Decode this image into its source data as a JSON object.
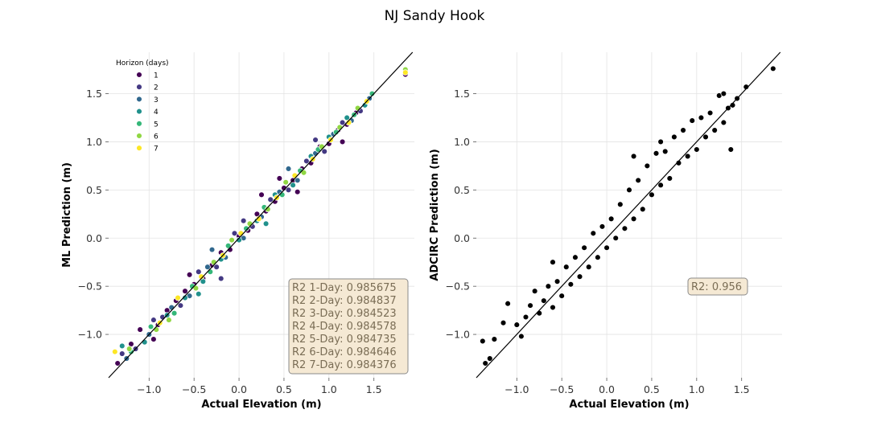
{
  "figure": {
    "title": "NJ Sandy Hook"
  },
  "chart_data": [
    {
      "type": "scatter",
      "xlabel": "Actual Elevation (m)",
      "ylabel": "ML Prediction (m)",
      "xlim": [
        -1.45,
        1.95
      ],
      "ylim": [
        -1.45,
        1.93
      ],
      "xticks": [
        -1.0,
        -0.5,
        0.0,
        0.5,
        1.0,
        1.5
      ],
      "xtick_labels": [
        "−1.0",
        "−0.5",
        "0.0",
        "0.5",
        "1.0",
        "1.5"
      ],
      "yticks": [
        -1.0,
        -0.5,
        0.0,
        0.5,
        1.0,
        1.5
      ],
      "ytick_labels": [
        "−1.0",
        "−0.5",
        "0.0",
        "0.5",
        "1.0",
        "1.5"
      ],
      "grid": true,
      "identity_line": true,
      "legend": {
        "title": "Horizon (days)",
        "placement": "top-left",
        "items": [
          {
            "label": "1",
            "color": "#440154"
          },
          {
            "label": "2",
            "color": "#443983"
          },
          {
            "label": "3",
            "color": "#31688e"
          },
          {
            "label": "4",
            "color": "#21918c"
          },
          {
            "label": "5",
            "color": "#35b779"
          },
          {
            "label": "6",
            "color": "#90d743"
          },
          {
            "label": "7",
            "color": "#fde725"
          }
        ]
      },
      "annotation": {
        "placement": "bottom-right",
        "lines": [
          "R2 1-Day: 0.985675",
          "R2 2-Day: 0.984837",
          "R2 3-Day: 0.984523",
          "R2 4-Day: 0.984578",
          "R2 5-Day: 0.984735",
          "R2 6-Day: 0.984646",
          "R2 7-Day: 0.984376"
        ]
      },
      "series": [
        {
          "name": "1",
          "color": "#440154",
          "points": [
            [
              -1.35,
              -1.3
            ],
            [
              -1.2,
              -1.1
            ],
            [
              -1.1,
              -0.95
            ],
            [
              -0.9,
              -0.9
            ],
            [
              -0.8,
              -0.75
            ],
            [
              -0.7,
              -0.65
            ],
            [
              -0.6,
              -0.55
            ],
            [
              -0.5,
              -0.48
            ],
            [
              -0.4,
              -0.42
            ],
            [
              -0.3,
              -0.28
            ],
            [
              -0.2,
              -0.15
            ],
            [
              -0.1,
              -0.12
            ],
            [
              0.0,
              0.02
            ],
            [
              0.1,
              0.08
            ],
            [
              0.2,
              0.25
            ],
            [
              0.3,
              0.28
            ],
            [
              0.4,
              0.38
            ],
            [
              0.5,
              0.52
            ],
            [
              0.6,
              0.6
            ],
            [
              0.7,
              0.72
            ],
            [
              0.8,
              0.78
            ],
            [
              0.9,
              0.95
            ],
            [
              1.0,
              0.98
            ],
            [
              1.1,
              1.12
            ],
            [
              1.2,
              1.18
            ],
            [
              1.3,
              1.3
            ],
            [
              1.85,
              1.7
            ],
            [
              -0.55,
              -0.38
            ],
            [
              0.25,
              0.45
            ],
            [
              0.65,
              0.48
            ],
            [
              1.15,
              1.0
            ],
            [
              -0.95,
              -1.05
            ],
            [
              0.45,
              0.62
            ]
          ]
        },
        {
          "name": "2",
          "color": "#443983",
          "points": [
            [
              -1.3,
              -1.2
            ],
            [
              -1.15,
              -1.15
            ],
            [
              -0.95,
              -0.85
            ],
            [
              -0.85,
              -0.82
            ],
            [
              -0.65,
              -0.7
            ],
            [
              -0.45,
              -0.35
            ],
            [
              -0.25,
              -0.3
            ],
            [
              -0.05,
              0.05
            ],
            [
              0.15,
              0.12
            ],
            [
              0.35,
              0.4
            ],
            [
              0.55,
              0.5
            ],
            [
              0.75,
              0.8
            ],
            [
              0.95,
              0.9
            ],
            [
              1.15,
              1.2
            ],
            [
              1.35,
              1.32
            ],
            [
              -0.2,
              -0.42
            ],
            [
              0.05,
              0.18
            ],
            [
              0.85,
              1.02
            ]
          ]
        },
        {
          "name": "3",
          "color": "#31688e",
          "points": [
            [
              -1.25,
              -1.25
            ],
            [
              -1.0,
              -1.0
            ],
            [
              -0.75,
              -0.72
            ],
            [
              -0.55,
              -0.6
            ],
            [
              -0.35,
              -0.3
            ],
            [
              -0.15,
              -0.2
            ],
            [
              0.05,
              0.0
            ],
            [
              0.25,
              0.22
            ],
            [
              0.45,
              0.48
            ],
            [
              0.65,
              0.6
            ],
            [
              0.85,
              0.88
            ],
            [
              1.05,
              1.08
            ],
            [
              1.25,
              1.22
            ],
            [
              1.45,
              1.45
            ],
            [
              -0.3,
              -0.12
            ],
            [
              0.55,
              0.72
            ]
          ]
        },
        {
          "name": "4",
          "color": "#21918c",
          "points": [
            [
              -1.3,
              -1.12
            ],
            [
              -1.05,
              -1.08
            ],
            [
              -0.8,
              -0.8
            ],
            [
              -0.6,
              -0.62
            ],
            [
              -0.4,
              -0.45
            ],
            [
              -0.2,
              -0.22
            ],
            [
              0.0,
              -0.02
            ],
            [
              0.2,
              0.18
            ],
            [
              0.4,
              0.45
            ],
            [
              0.6,
              0.55
            ],
            [
              0.8,
              0.85
            ],
            [
              1.0,
              1.05
            ],
            [
              1.2,
              1.25
            ],
            [
              1.4,
              1.38
            ],
            [
              -0.45,
              -0.58
            ],
            [
              0.3,
              0.15
            ]
          ]
        },
        {
          "name": "5",
          "color": "#35b779",
          "points": [
            [
              -1.2,
              -1.18
            ],
            [
              -0.98,
              -0.92
            ],
            [
              -0.72,
              -0.78
            ],
            [
              -0.52,
              -0.5
            ],
            [
              -0.32,
              -0.35
            ],
            [
              -0.12,
              -0.08
            ],
            [
              0.08,
              0.1
            ],
            [
              0.28,
              0.32
            ],
            [
              0.48,
              0.45
            ],
            [
              0.68,
              0.7
            ],
            [
              0.88,
              0.92
            ],
            [
              1.08,
              1.1
            ],
            [
              1.28,
              1.28
            ],
            [
              1.48,
              1.5
            ]
          ]
        },
        {
          "name": "6",
          "color": "#90d743",
          "points": [
            [
              -1.22,
              -1.15
            ],
            [
              -0.92,
              -0.95
            ],
            [
              -0.78,
              -0.85
            ],
            [
              -0.48,
              -0.52
            ],
            [
              -0.28,
              -0.25
            ],
            [
              -0.08,
              -0.02
            ],
            [
              0.12,
              0.15
            ],
            [
              0.32,
              0.3
            ],
            [
              0.52,
              0.58
            ],
            [
              0.72,
              0.68
            ],
            [
              0.92,
              0.95
            ],
            [
              1.12,
              1.15
            ],
            [
              1.32,
              1.35
            ],
            [
              1.85,
              1.75
            ]
          ]
        },
        {
          "name": "7",
          "color": "#fde725",
          "points": [
            [
              -1.38,
              -1.18
            ],
            [
              -0.88,
              -0.88
            ],
            [
              -0.68,
              -0.62
            ],
            [
              -0.42,
              -0.4
            ],
            [
              -0.18,
              -0.18
            ],
            [
              0.02,
              0.05
            ],
            [
              0.22,
              0.2
            ],
            [
              0.42,
              0.42
            ],
            [
              0.62,
              0.65
            ],
            [
              0.82,
              0.82
            ],
            [
              1.02,
              1.02
            ],
            [
              1.22,
              1.2
            ],
            [
              1.42,
              1.42
            ],
            [
              1.85,
              1.72
            ]
          ]
        }
      ]
    },
    {
      "type": "scatter",
      "xlabel": "Actual Elevation (m)",
      "ylabel": "ADCIRC Prediction (m)",
      "xlim": [
        -1.45,
        1.95
      ],
      "ylim": [
        -1.45,
        1.93
      ],
      "xticks": [
        -1.0,
        -0.5,
        0.0,
        0.5,
        1.0,
        1.5
      ],
      "xtick_labels": [
        "−1.0",
        "−0.5",
        "0.0",
        "0.5",
        "1.0",
        "1.5"
      ],
      "yticks": [
        -1.0,
        -0.5,
        0.0,
        0.5,
        1.0,
        1.5
      ],
      "ytick_labels": [
        "−1.0",
        "−0.5",
        "0.0",
        "0.5",
        "1.0",
        "1.5"
      ],
      "grid": true,
      "identity_line": true,
      "annotation": {
        "placement": "right",
        "lines": [
          "R2: 0.956"
        ]
      },
      "series": [
        {
          "color": "#000000",
          "points": [
            [
              -1.35,
              -1.3
            ],
            [
              -1.38,
              -1.07
            ],
            [
              -1.3,
              -1.25
            ],
            [
              -1.25,
              -1.05
            ],
            [
              -1.15,
              -0.88
            ],
            [
              -1.1,
              -0.68
            ],
            [
              -1.0,
              -0.9
            ],
            [
              -0.95,
              -1.02
            ],
            [
              -0.9,
              -0.82
            ],
            [
              -0.85,
              -0.7
            ],
            [
              -0.8,
              -0.55
            ],
            [
              -0.75,
              -0.78
            ],
            [
              -0.7,
              -0.65
            ],
            [
              -0.65,
              -0.5
            ],
            [
              -0.6,
              -0.72
            ],
            [
              -0.55,
              -0.45
            ],
            [
              -0.5,
              -0.6
            ],
            [
              -0.45,
              -0.3
            ],
            [
              -0.4,
              -0.48
            ],
            [
              -0.35,
              -0.2
            ],
            [
              -0.3,
              -0.4
            ],
            [
              -0.25,
              -0.1
            ],
            [
              -0.2,
              -0.3
            ],
            [
              -0.15,
              0.05
            ],
            [
              -0.1,
              -0.2
            ],
            [
              -0.05,
              0.12
            ],
            [
              0.0,
              -0.1
            ],
            [
              0.05,
              0.2
            ],
            [
              0.1,
              0.0
            ],
            [
              0.15,
              0.35
            ],
            [
              0.2,
              0.1
            ],
            [
              0.25,
              0.5
            ],
            [
              0.3,
              0.2
            ],
            [
              0.35,
              0.6
            ],
            [
              0.4,
              0.3
            ],
            [
              0.45,
              0.75
            ],
            [
              0.5,
              0.45
            ],
            [
              0.55,
              0.88
            ],
            [
              0.6,
              0.55
            ],
            [
              0.65,
              0.9
            ],
            [
              0.7,
              0.62
            ],
            [
              0.75,
              1.05
            ],
            [
              0.8,
              0.78
            ],
            [
              0.85,
              1.12
            ],
            [
              0.9,
              0.85
            ],
            [
              0.95,
              1.22
            ],
            [
              1.0,
              0.92
            ],
            [
              1.05,
              1.25
            ],
            [
              1.1,
              1.05
            ],
            [
              1.15,
              1.3
            ],
            [
              1.2,
              1.12
            ],
            [
              1.25,
              1.48
            ],
            [
              1.3,
              1.2
            ],
            [
              1.35,
              1.35
            ],
            [
              1.4,
              1.38
            ],
            [
              1.38,
              0.92
            ],
            [
              1.45,
              1.45
            ],
            [
              1.55,
              1.57
            ],
            [
              1.85,
              1.76
            ],
            [
              0.6,
              1.0
            ],
            [
              0.3,
              0.85
            ],
            [
              -0.6,
              -0.25
            ],
            [
              1.3,
              1.5
            ]
          ]
        }
      ]
    }
  ]
}
